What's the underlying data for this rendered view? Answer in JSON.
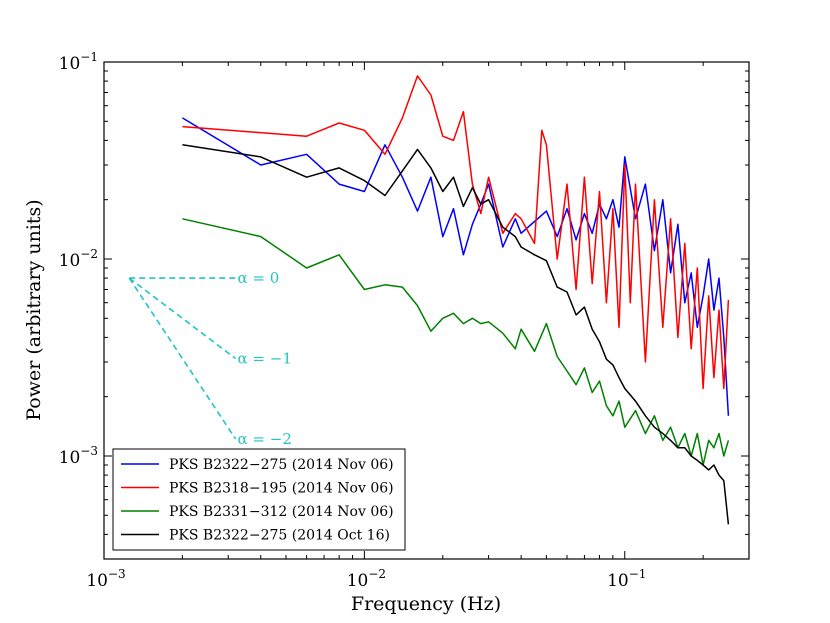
{
  "chart_data": {
    "type": "line",
    "xscale": "log",
    "yscale": "log",
    "xlim": [
      0.001,
      0.3
    ],
    "ylim": [
      0.0003,
      0.1
    ],
    "xlabel": "Frequency (Hz)",
    "ylabel": "Power (arbitrary units)",
    "xticks": [
      {
        "value": 0.001,
        "base": "10",
        "exp": "−3"
      },
      {
        "value": 0.01,
        "base": "10",
        "exp": "−2"
      },
      {
        "value": 0.1,
        "base": "10",
        "exp": "−1"
      }
    ],
    "yticks": [
      {
        "value": 0.001,
        "base": "10",
        "exp": "−3"
      },
      {
        "value": 0.01,
        "base": "10",
        "exp": "−2"
      },
      {
        "value": 0.1,
        "base": "10",
        "exp": "−1"
      }
    ],
    "grid": false,
    "legend_position": "lower-left",
    "series": [
      {
        "name": "PKS B2322−275 (2014 Nov 06)",
        "color": "#0000ff",
        "x": [
          0.002,
          0.004,
          0.006,
          0.008,
          0.01,
          0.012,
          0.014,
          0.016,
          0.018,
          0.02,
          0.022,
          0.024,
          0.026,
          0.028,
          0.03,
          0.034,
          0.038,
          0.04,
          0.045,
          0.05,
          0.055,
          0.06,
          0.065,
          0.07,
          0.075,
          0.08,
          0.085,
          0.09,
          0.095,
          0.1,
          0.11,
          0.12,
          0.13,
          0.14,
          0.15,
          0.16,
          0.17,
          0.18,
          0.19,
          0.2,
          0.21,
          0.22,
          0.23,
          0.24,
          0.25
        ],
        "y": [
          0.052,
          0.03,
          0.034,
          0.024,
          0.022,
          0.038,
          0.026,
          0.0175,
          0.026,
          0.013,
          0.018,
          0.0105,
          0.015,
          0.019,
          0.024,
          0.0115,
          0.016,
          0.0135,
          0.0155,
          0.0175,
          0.013,
          0.018,
          0.0125,
          0.017,
          0.0135,
          0.019,
          0.016,
          0.02,
          0.0145,
          0.033,
          0.016,
          0.024,
          0.011,
          0.02,
          0.0085,
          0.015,
          0.006,
          0.0085,
          0.0045,
          0.0065,
          0.01,
          0.0055,
          0.008,
          0.004,
          0.0016
        ]
      },
      {
        "name": "PKS B2318−195 (2014 Nov 06)",
        "color": "#ff0000",
        "x": [
          0.002,
          0.006,
          0.008,
          0.01,
          0.012,
          0.014,
          0.016,
          0.018,
          0.02,
          0.022,
          0.024,
          0.026,
          0.028,
          0.03,
          0.034,
          0.038,
          0.04,
          0.045,
          0.048,
          0.05,
          0.055,
          0.06,
          0.065,
          0.07,
          0.075,
          0.08,
          0.085,
          0.09,
          0.095,
          0.1,
          0.105,
          0.11,
          0.12,
          0.13,
          0.14,
          0.15,
          0.16,
          0.17,
          0.18,
          0.19,
          0.2,
          0.21,
          0.22,
          0.23,
          0.24,
          0.25
        ],
        "y": [
          0.047,
          0.042,
          0.049,
          0.045,
          0.034,
          0.052,
          0.085,
          0.068,
          0.042,
          0.04,
          0.056,
          0.024,
          0.017,
          0.026,
          0.0135,
          0.017,
          0.016,
          0.012,
          0.045,
          0.038,
          0.01,
          0.024,
          0.007,
          0.026,
          0.0075,
          0.022,
          0.006,
          0.018,
          0.0045,
          0.03,
          0.006,
          0.024,
          0.003,
          0.02,
          0.0045,
          0.016,
          0.004,
          0.012,
          0.0035,
          0.009,
          0.0022,
          0.0065,
          0.0025,
          0.0055,
          0.0022,
          0.0062
        ]
      },
      {
        "name": "PKS B2331−312 (2014 Nov 06)",
        "color": "#008000",
        "x": [
          0.002,
          0.004,
          0.006,
          0.008,
          0.01,
          0.012,
          0.014,
          0.016,
          0.018,
          0.02,
          0.022,
          0.024,
          0.026,
          0.028,
          0.03,
          0.034,
          0.038,
          0.04,
          0.045,
          0.05,
          0.055,
          0.06,
          0.065,
          0.07,
          0.075,
          0.08,
          0.085,
          0.09,
          0.095,
          0.1,
          0.11,
          0.12,
          0.13,
          0.14,
          0.15,
          0.16,
          0.17,
          0.18,
          0.19,
          0.2,
          0.21,
          0.22,
          0.23,
          0.24,
          0.25
        ],
        "y": [
          0.016,
          0.013,
          0.009,
          0.0105,
          0.007,
          0.0074,
          0.0072,
          0.0058,
          0.0043,
          0.005,
          0.0053,
          0.0047,
          0.005,
          0.0047,
          0.0048,
          0.0042,
          0.0035,
          0.0044,
          0.0034,
          0.0047,
          0.0032,
          0.0027,
          0.0023,
          0.0028,
          0.0021,
          0.0024,
          0.0018,
          0.0016,
          0.0019,
          0.0014,
          0.0017,
          0.0013,
          0.0016,
          0.0012,
          0.0014,
          0.0011,
          0.0013,
          0.001,
          0.0013,
          0.0009,
          0.0012,
          0.0011,
          0.0013,
          0.001,
          0.0012
        ]
      },
      {
        "name": "PKS B2322−275 (2014 Oct 16)",
        "color": "#000000",
        "x": [
          0.002,
          0.004,
          0.006,
          0.008,
          0.01,
          0.012,
          0.014,
          0.016,
          0.018,
          0.02,
          0.022,
          0.024,
          0.026,
          0.028,
          0.03,
          0.034,
          0.038,
          0.04,
          0.045,
          0.05,
          0.055,
          0.06,
          0.065,
          0.07,
          0.075,
          0.08,
          0.085,
          0.09,
          0.095,
          0.1,
          0.11,
          0.12,
          0.13,
          0.14,
          0.15,
          0.16,
          0.17,
          0.18,
          0.19,
          0.2,
          0.21,
          0.22,
          0.23,
          0.24,
          0.25
        ],
        "y": [
          0.038,
          0.033,
          0.026,
          0.029,
          0.025,
          0.021,
          0.028,
          0.036,
          0.029,
          0.022,
          0.026,
          0.0185,
          0.023,
          0.019,
          0.02,
          0.0145,
          0.013,
          0.0115,
          0.0105,
          0.0098,
          0.0072,
          0.0068,
          0.0052,
          0.0057,
          0.0044,
          0.0038,
          0.0031,
          0.0029,
          0.0025,
          0.0022,
          0.0019,
          0.0016,
          0.0014,
          0.0013,
          0.0012,
          0.0011,
          0.0011,
          0.001,
          0.00095,
          0.0009,
          0.00085,
          0.0009,
          0.0008,
          0.00075,
          0.00045
        ]
      }
    ],
    "annotations": [
      {
        "label": "α = 0",
        "color": "#22c4c4",
        "slope": 0
      },
      {
        "label": "α = −1",
        "color": "#22c4c4",
        "slope": -1
      },
      {
        "label": "α = −2",
        "color": "#22c4c4",
        "slope": -2
      }
    ],
    "annotation_origin": {
      "x": 0.00125,
      "y": 0.008
    },
    "annotation_x_end": 0.0032
  }
}
